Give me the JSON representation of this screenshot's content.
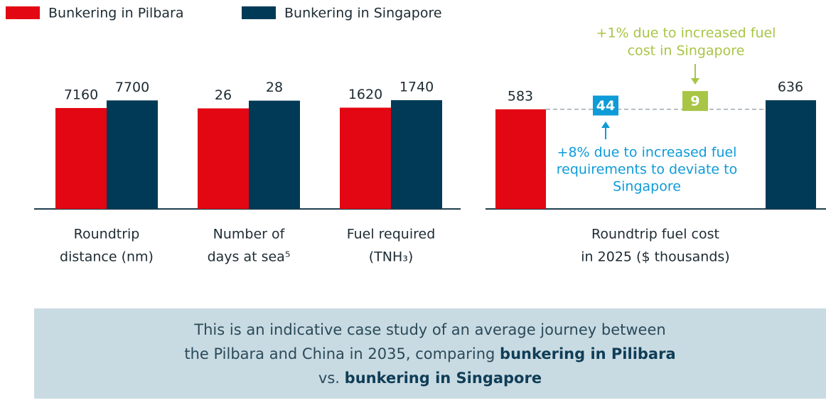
{
  "legend": [
    {
      "name": "Bunkering in Pilbara",
      "color": "#e30613"
    },
    {
      "name": "Bunkering in Singapore",
      "color": "#003a57"
    }
  ],
  "chart_data": [
    {
      "type": "bar",
      "label": [
        "Roundtrip",
        "distance (nm)"
      ],
      "values": [
        7160,
        7700
      ],
      "ylim": [
        0,
        11800
      ]
    },
    {
      "type": "bar",
      "label": [
        "Number  of",
        "days at sea⁵"
      ],
      "values": [
        26,
        28
      ],
      "ylim": [
        0,
        43
      ]
    },
    {
      "type": "bar",
      "label": [
        "Fuel required",
        "(TNH₃)"
      ],
      "values": [
        1620,
        1740
      ],
      "ylim": [
        0,
        2660
      ]
    },
    {
      "type": "waterfall",
      "label": [
        "Roundtrip fuel cost",
        "in 2025 ($ thousands)"
      ],
      "values": [
        583,
        44,
        9,
        636
      ],
      "colors": [
        "#e30613",
        "#0e9bd8",
        "#a8c545",
        "#003a57"
      ],
      "ylim": [
        0,
        973
      ],
      "annotations": [
        [
          "+8% due to increased fuel",
          "requirements  to deviate to",
          "Singapore"
        ],
        [
          "+1% due to increased fuel",
          "cost in Singapore"
        ]
      ]
    }
  ],
  "footer": [
    [
      {
        "text": "This is an indicative case study of an average journey between"
      }
    ],
    [
      {
        "text": "the Pilbara and China in 2035, comparing "
      },
      {
        "text": "bunkering in Pilibara",
        "bold": true
      }
    ],
    [
      {
        "text": "vs. "
      },
      {
        "text": "bunkering in Singapore",
        "bold": true
      }
    ]
  ]
}
